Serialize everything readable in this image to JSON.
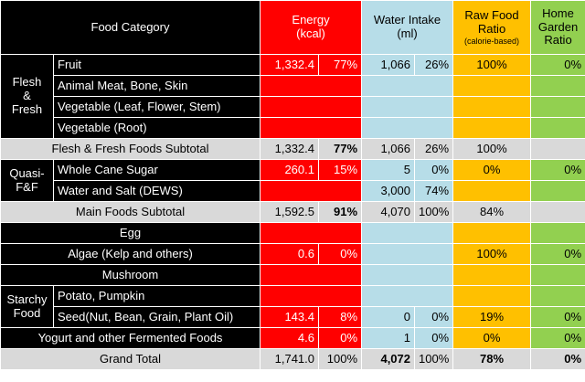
{
  "header": {
    "food_category": "Food Category",
    "energy_l1": "Energy",
    "energy_l2": "(kcal)",
    "water_l1": "Water Intake",
    "water_l2": "(ml)",
    "raw_l1": "Raw Food",
    "raw_l2": "Ratio",
    "raw_l3": "(calorie-based)",
    "home_l1": "Home",
    "home_l2": "Garden",
    "home_l3": "Ratio"
  },
  "groups": {
    "flesh_l1": "Flesh",
    "flesh_l2": "&",
    "flesh_l3": "Fresh",
    "quasi_l1": "Quasi-",
    "quasi_l2": "F&F",
    "starchy_l1": "Starchy",
    "starchy_l2": "Food"
  },
  "rows": {
    "fruit": {
      "label": "Fruit",
      "energy": "1,332.4",
      "energy_pct": "77%",
      "water": "1,066",
      "water_pct": "26%",
      "raw": "100%",
      "home": "0%"
    },
    "animal_meat": {
      "label": "Animal Meat, Bone, Skin"
    },
    "veg_leaf": {
      "label": "Vegetable (Leaf, Flower, Stem)"
    },
    "veg_root": {
      "label": "Vegetable (Root)"
    },
    "flesh_subtotal": {
      "label": "Flesh & Fresh Foods Subtotal",
      "energy": "1,332.4",
      "energy_pct": "77%",
      "water": "1,066",
      "water_pct": "26%",
      "raw": "100%"
    },
    "cane_sugar": {
      "label": "Whole Cane Sugar",
      "energy": "260.1",
      "energy_pct": "15%",
      "water": "5",
      "water_pct": "0%",
      "raw": "0%",
      "home": "0%"
    },
    "water_salt": {
      "label": "Water and Salt (DEWS)",
      "water": "3,000",
      "water_pct": "74%"
    },
    "main_subtotal": {
      "label": "Main Foods Subtotal",
      "energy": "1,592.5",
      "energy_pct": "91%",
      "water": "4,070",
      "water_pct": "100%",
      "raw": "84%"
    },
    "egg": {
      "label": "Egg"
    },
    "algae": {
      "label": "Algae (Kelp and others)",
      "energy": "0.6",
      "energy_pct": "0%",
      "raw": "100%",
      "home": "0%"
    },
    "mushroom": {
      "label": "Mushroom"
    },
    "potato": {
      "label": "Potato, Pumpkin"
    },
    "seed": {
      "label": "Seed(Nut, Bean, Grain, Plant Oil)",
      "energy": "143.4",
      "energy_pct": "8%",
      "water": "0",
      "water_pct": "0%",
      "raw": "19%",
      "home": "0%"
    },
    "yogurt": {
      "label": "Yogurt and other Fermented Foods",
      "energy": "4.6",
      "energy_pct": "0%",
      "water": "1",
      "water_pct": "0%",
      "raw": "0%",
      "home": "0%"
    },
    "grand_total": {
      "label": "Grand Total",
      "energy": "1,741.0",
      "energy_pct": "100%",
      "water": "4,072",
      "water_pct": "100%",
      "raw": "78%",
      "home": "0%"
    }
  },
  "colors": {
    "header_black": "#000000",
    "energy_red": "#ff0000",
    "water_blue": "#b7dde8",
    "raw_orange": "#ffc000",
    "home_green": "#92d050",
    "subtotal_gray": "#d9d9d9"
  }
}
